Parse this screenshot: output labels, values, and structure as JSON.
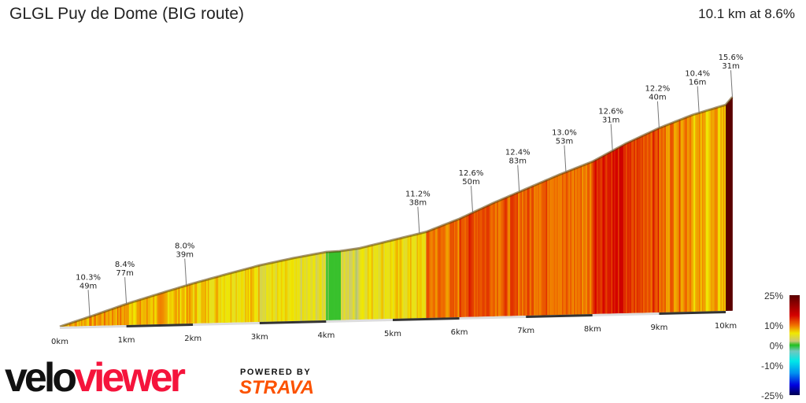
{
  "header": {
    "title": "GLGL Puy de Dome (BIG route)",
    "summary": "10.1 km at 8.6%"
  },
  "chart_data": {
    "type": "area",
    "xlabel": "",
    "ylabel": "",
    "x_unit": "km",
    "xlim": [
      0,
      10.1
    ],
    "x_ticks": [
      "0km",
      "1km",
      "2km",
      "3km",
      "4km",
      "5km",
      "6km",
      "7km",
      "8km",
      "9km",
      "10km"
    ],
    "profile": {
      "distance_km": [
        0,
        0.5,
        1,
        1.5,
        2,
        2.5,
        3,
        3.5,
        4,
        4.2,
        4.5,
        5,
        5.5,
        6,
        6.5,
        7,
        7.5,
        8,
        8.5,
        9,
        9.5,
        10,
        10.1
      ],
      "elevation_gain_m": [
        0,
        42,
        86,
        125,
        163,
        197,
        230,
        256,
        278,
        280,
        290,
        320,
        350,
        400,
        460,
        515,
        570,
        620,
        690,
        750,
        800,
        838,
        869
      ]
    },
    "annotations": [
      {
        "km": 0.45,
        "gradient": "10.3%",
        "length": "49m"
      },
      {
        "km": 1.0,
        "gradient": "8.4%",
        "length": "77m"
      },
      {
        "km": 1.9,
        "gradient": "8.0%",
        "length": "39m"
      },
      {
        "km": 5.4,
        "gradient": "11.2%",
        "length": "38m"
      },
      {
        "km": 6.2,
        "gradient": "12.6%",
        "length": "50m"
      },
      {
        "km": 6.9,
        "gradient": "12.4%",
        "length": "83m"
      },
      {
        "km": 7.6,
        "gradient": "13.0%",
        "length": "53m"
      },
      {
        "km": 8.3,
        "gradient": "12.6%",
        "length": "31m"
      },
      {
        "km": 9.0,
        "gradient": "12.2%",
        "length": "40m"
      },
      {
        "km": 9.6,
        "gradient": "10.4%",
        "length": "16m"
      },
      {
        "km": 10.1,
        "gradient": "15.6%",
        "length": "31m"
      }
    ],
    "legend": {
      "labels": [
        "25%",
        "10%",
        "0%",
        "-10%",
        "-25%"
      ],
      "stops": [
        {
          "value": 25,
          "color": "#5a0000"
        },
        {
          "value": 15,
          "color": "#d40000"
        },
        {
          "value": 10,
          "color": "#f07000"
        },
        {
          "value": 6,
          "color": "#f0e800"
        },
        {
          "value": 2,
          "color": "#c8c878"
        },
        {
          "value": 0,
          "color": "#20c020"
        },
        {
          "value": -3,
          "color": "#70c8c0"
        },
        {
          "value": -8,
          "color": "#00e8e8"
        },
        {
          "value": -14,
          "color": "#0090f0"
        },
        {
          "value": -20,
          "color": "#0000e0"
        },
        {
          "value": -25,
          "color": "#000050"
        }
      ]
    }
  },
  "branding": {
    "logo_part1": "velo",
    "logo_part2": "viewer",
    "powered_by": "POWERED BY",
    "strava": "STRAVA"
  },
  "colors": {
    "veloviewer_red": "#f5143c",
    "strava_orange": "#fc5200"
  }
}
